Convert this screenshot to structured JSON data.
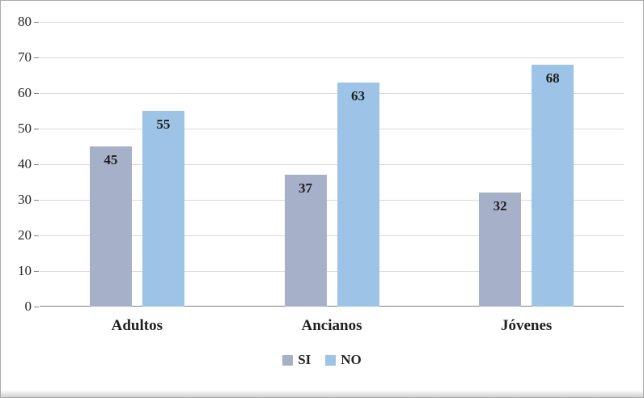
{
  "chart_data": {
    "type": "bar",
    "title": "",
    "xlabel": "",
    "ylabel": "",
    "categories": [
      "Adultos",
      "Ancianos",
      "Jóvenes"
    ],
    "series": [
      {
        "name": "SI",
        "color": "#a6b1c9",
        "values": [
          45,
          37,
          32
        ]
      },
      {
        "name": "NO",
        "color": "#9dc3e6",
        "values": [
          55,
          63,
          68
        ]
      }
    ],
    "ylim": [
      0,
      80
    ],
    "ytick_step": 10,
    "ytick_labels": [
      "0",
      "10",
      "20",
      "30",
      "40",
      "50",
      "60",
      "70",
      "80"
    ],
    "grid": true,
    "data_labels": "inside_end",
    "legend_position": "bottom"
  },
  "colors": {
    "gridline": "#d9d9d9",
    "axis": "#7f7f7f",
    "text": "#262626",
    "frame_border": "#a9a9a9",
    "background": "#ffffff"
  }
}
